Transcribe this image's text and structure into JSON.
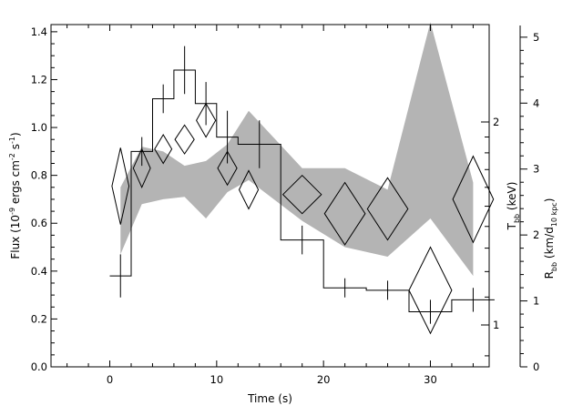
{
  "chart_data": {
    "type": "line",
    "x_axis": {
      "label": "Time (s)",
      "lim": [
        -5.5,
        35.5
      ],
      "ticks": [
        0,
        10,
        20,
        30
      ],
      "tick_labels": [
        "0",
        "10",
        "20",
        "30"
      ]
    },
    "y_left": {
      "label_main": "Flux (10",
      "label_exp1": "-9",
      "label_mid": " ergs cm",
      "label_exp2": "-2",
      "label_s": " s",
      "label_exp3": "-1",
      "label_close": ")",
      "lim": [
        0,
        1.43
      ],
      "ticks": [
        0.0,
        0.2,
        0.4,
        0.6,
        0.8,
        1.0,
        1.2,
        1.4
      ],
      "tick_labels": [
        "0.0",
        "0.2",
        "0.4",
        "0.6",
        "0.8",
        "1.0",
        "1.2",
        "1.4"
      ]
    },
    "y_kT": {
      "label_main": "T",
      "label_sub": "bb",
      "label_rest": " (keV)",
      "ticks": [
        1,
        2
      ],
      "tick_labels": [
        "1",
        "2"
      ]
    },
    "y_R": {
      "label_main": "R",
      "label_sub1": "bb",
      "label_mid": " (km/d",
      "label_sub2": "10 kpc",
      "label_close": ")",
      "lim": [
        0,
        5.15
      ],
      "ticks": [
        0,
        1,
        2,
        3,
        4,
        5
      ],
      "tick_labels": [
        "0",
        "1",
        "2",
        "3",
        "4",
        "5"
      ]
    },
    "series": [
      {
        "kind": "flux-histogram",
        "points": [
          {
            "t": 1,
            "hw": 1,
            "v": 0.38,
            "err": 0.09
          },
          {
            "t": 3,
            "hw": 1,
            "v": 0.9,
            "err": 0.06
          },
          {
            "t": 5,
            "hw": 1,
            "v": 1.12,
            "err": 0.06
          },
          {
            "t": 7,
            "hw": 1,
            "v": 1.24,
            "err": 0.1
          },
          {
            "t": 9,
            "hw": 1,
            "v": 1.1,
            "err": 0.09
          },
          {
            "t": 11,
            "hw": 1,
            "v": 0.96,
            "err": 0.11
          },
          {
            "t": 14,
            "hw": 2,
            "v": 0.93,
            "err": 0.1
          },
          {
            "t": 18,
            "hw": 2,
            "v": 0.53,
            "err": 0.06
          },
          {
            "t": 22,
            "hw": 2,
            "v": 0.33,
            "err": 0.04
          },
          {
            "t": 26,
            "hw": 2,
            "v": 0.32,
            "err": 0.04
          },
          {
            "t": 30,
            "hw": 2,
            "v": 0.23,
            "err": 0.05
          },
          {
            "t": 34,
            "hw": 2,
            "v": 0.28,
            "err": 0.05
          }
        ]
      },
      {
        "kind": "kT-diamonds",
        "points": [
          {
            "t": 1,
            "hw": 0.8,
            "v": 0.755,
            "dv": 0.16
          },
          {
            "t": 3,
            "hw": 0.8,
            "v": 0.83,
            "dv": 0.08
          },
          {
            "t": 5,
            "hw": 0.8,
            "v": 0.91,
            "dv": 0.06
          },
          {
            "t": 7,
            "hw": 0.9,
            "v": 0.95,
            "dv": 0.06
          },
          {
            "t": 9,
            "hw": 0.9,
            "v": 1.03,
            "dv": 0.07
          },
          {
            "t": 11,
            "hw": 0.9,
            "v": 0.83,
            "dv": 0.07
          },
          {
            "t": 13,
            "hw": 0.9,
            "v": 0.74,
            "dv": 0.08
          },
          {
            "t": 18,
            "hw": 1.8,
            "v": 0.72,
            "dv": 0.08
          },
          {
            "t": 22,
            "hw": 1.9,
            "v": 0.64,
            "dv": 0.13
          },
          {
            "t": 26,
            "hw": 1.9,
            "v": 0.66,
            "dv": 0.13
          },
          {
            "t": 30,
            "hw": 2.0,
            "v": 0.32,
            "dv": 0.18
          },
          {
            "t": 34,
            "hw": 1.9,
            "v": 0.7,
            "dv": 0.18
          }
        ]
      },
      {
        "kind": "R-band",
        "upper": [
          {
            "t": 1,
            "v": 0.75
          },
          {
            "t": 3,
            "v": 0.92
          },
          {
            "t": 5,
            "v": 0.9
          },
          {
            "t": 7,
            "v": 0.84
          },
          {
            "t": 9,
            "v": 0.86
          },
          {
            "t": 11,
            "v": 0.93
          },
          {
            "t": 13,
            "v": 1.07
          },
          {
            "t": 18,
            "v": 0.83
          },
          {
            "t": 22,
            "v": 0.83
          },
          {
            "t": 26,
            "v": 0.74
          },
          {
            "t": 30,
            "v": 1.44
          },
          {
            "t": 34,
            "v": 0.77
          }
        ],
        "lower": [
          {
            "t": 1,
            "v": 0.47
          },
          {
            "t": 3,
            "v": 0.68
          },
          {
            "t": 5,
            "v": 0.7
          },
          {
            "t": 7,
            "v": 0.71
          },
          {
            "t": 9,
            "v": 0.62
          },
          {
            "t": 11,
            "v": 0.73
          },
          {
            "t": 13,
            "v": 0.78
          },
          {
            "t": 18,
            "v": 0.61
          },
          {
            "t": 22,
            "v": 0.5
          },
          {
            "t": 26,
            "v": 0.46
          },
          {
            "t": 30,
            "v": 0.62
          },
          {
            "t": 34,
            "v": 0.38
          }
        ]
      }
    ],
    "grid": false,
    "legend": "none",
    "colors": {
      "band": "#b4b4b4",
      "line": "#000000"
    }
  }
}
